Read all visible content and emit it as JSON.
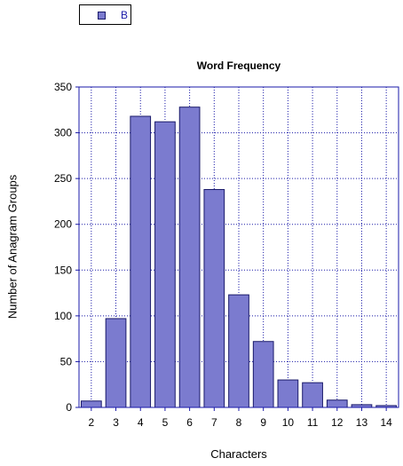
{
  "chart_data": {
    "type": "bar",
    "title": "Word Frequency",
    "xlabel": "Characters",
    "ylabel": "Number of Anagram Groups",
    "categories": [
      "2",
      "3",
      "4",
      "5",
      "6",
      "7",
      "8",
      "9",
      "10",
      "11",
      "12",
      "13",
      "14"
    ],
    "series": [
      {
        "name": "B",
        "values": [
          7,
          97,
          318,
          312,
          328,
          238,
          123,
          72,
          30,
          27,
          8,
          3,
          2
        ]
      }
    ],
    "ylim": [
      0,
      350
    ],
    "yticks": [
      0,
      50,
      100,
      150,
      200,
      250,
      300,
      350
    ],
    "grid": true,
    "legend": "top-left",
    "colors": {
      "bar_fill": "#7b7bcf",
      "bar_stroke": "#1a1a6a",
      "grid": "#1a1aa8",
      "axis": "#1a1aa8",
      "legend_text": "#1a1aa8"
    }
  }
}
